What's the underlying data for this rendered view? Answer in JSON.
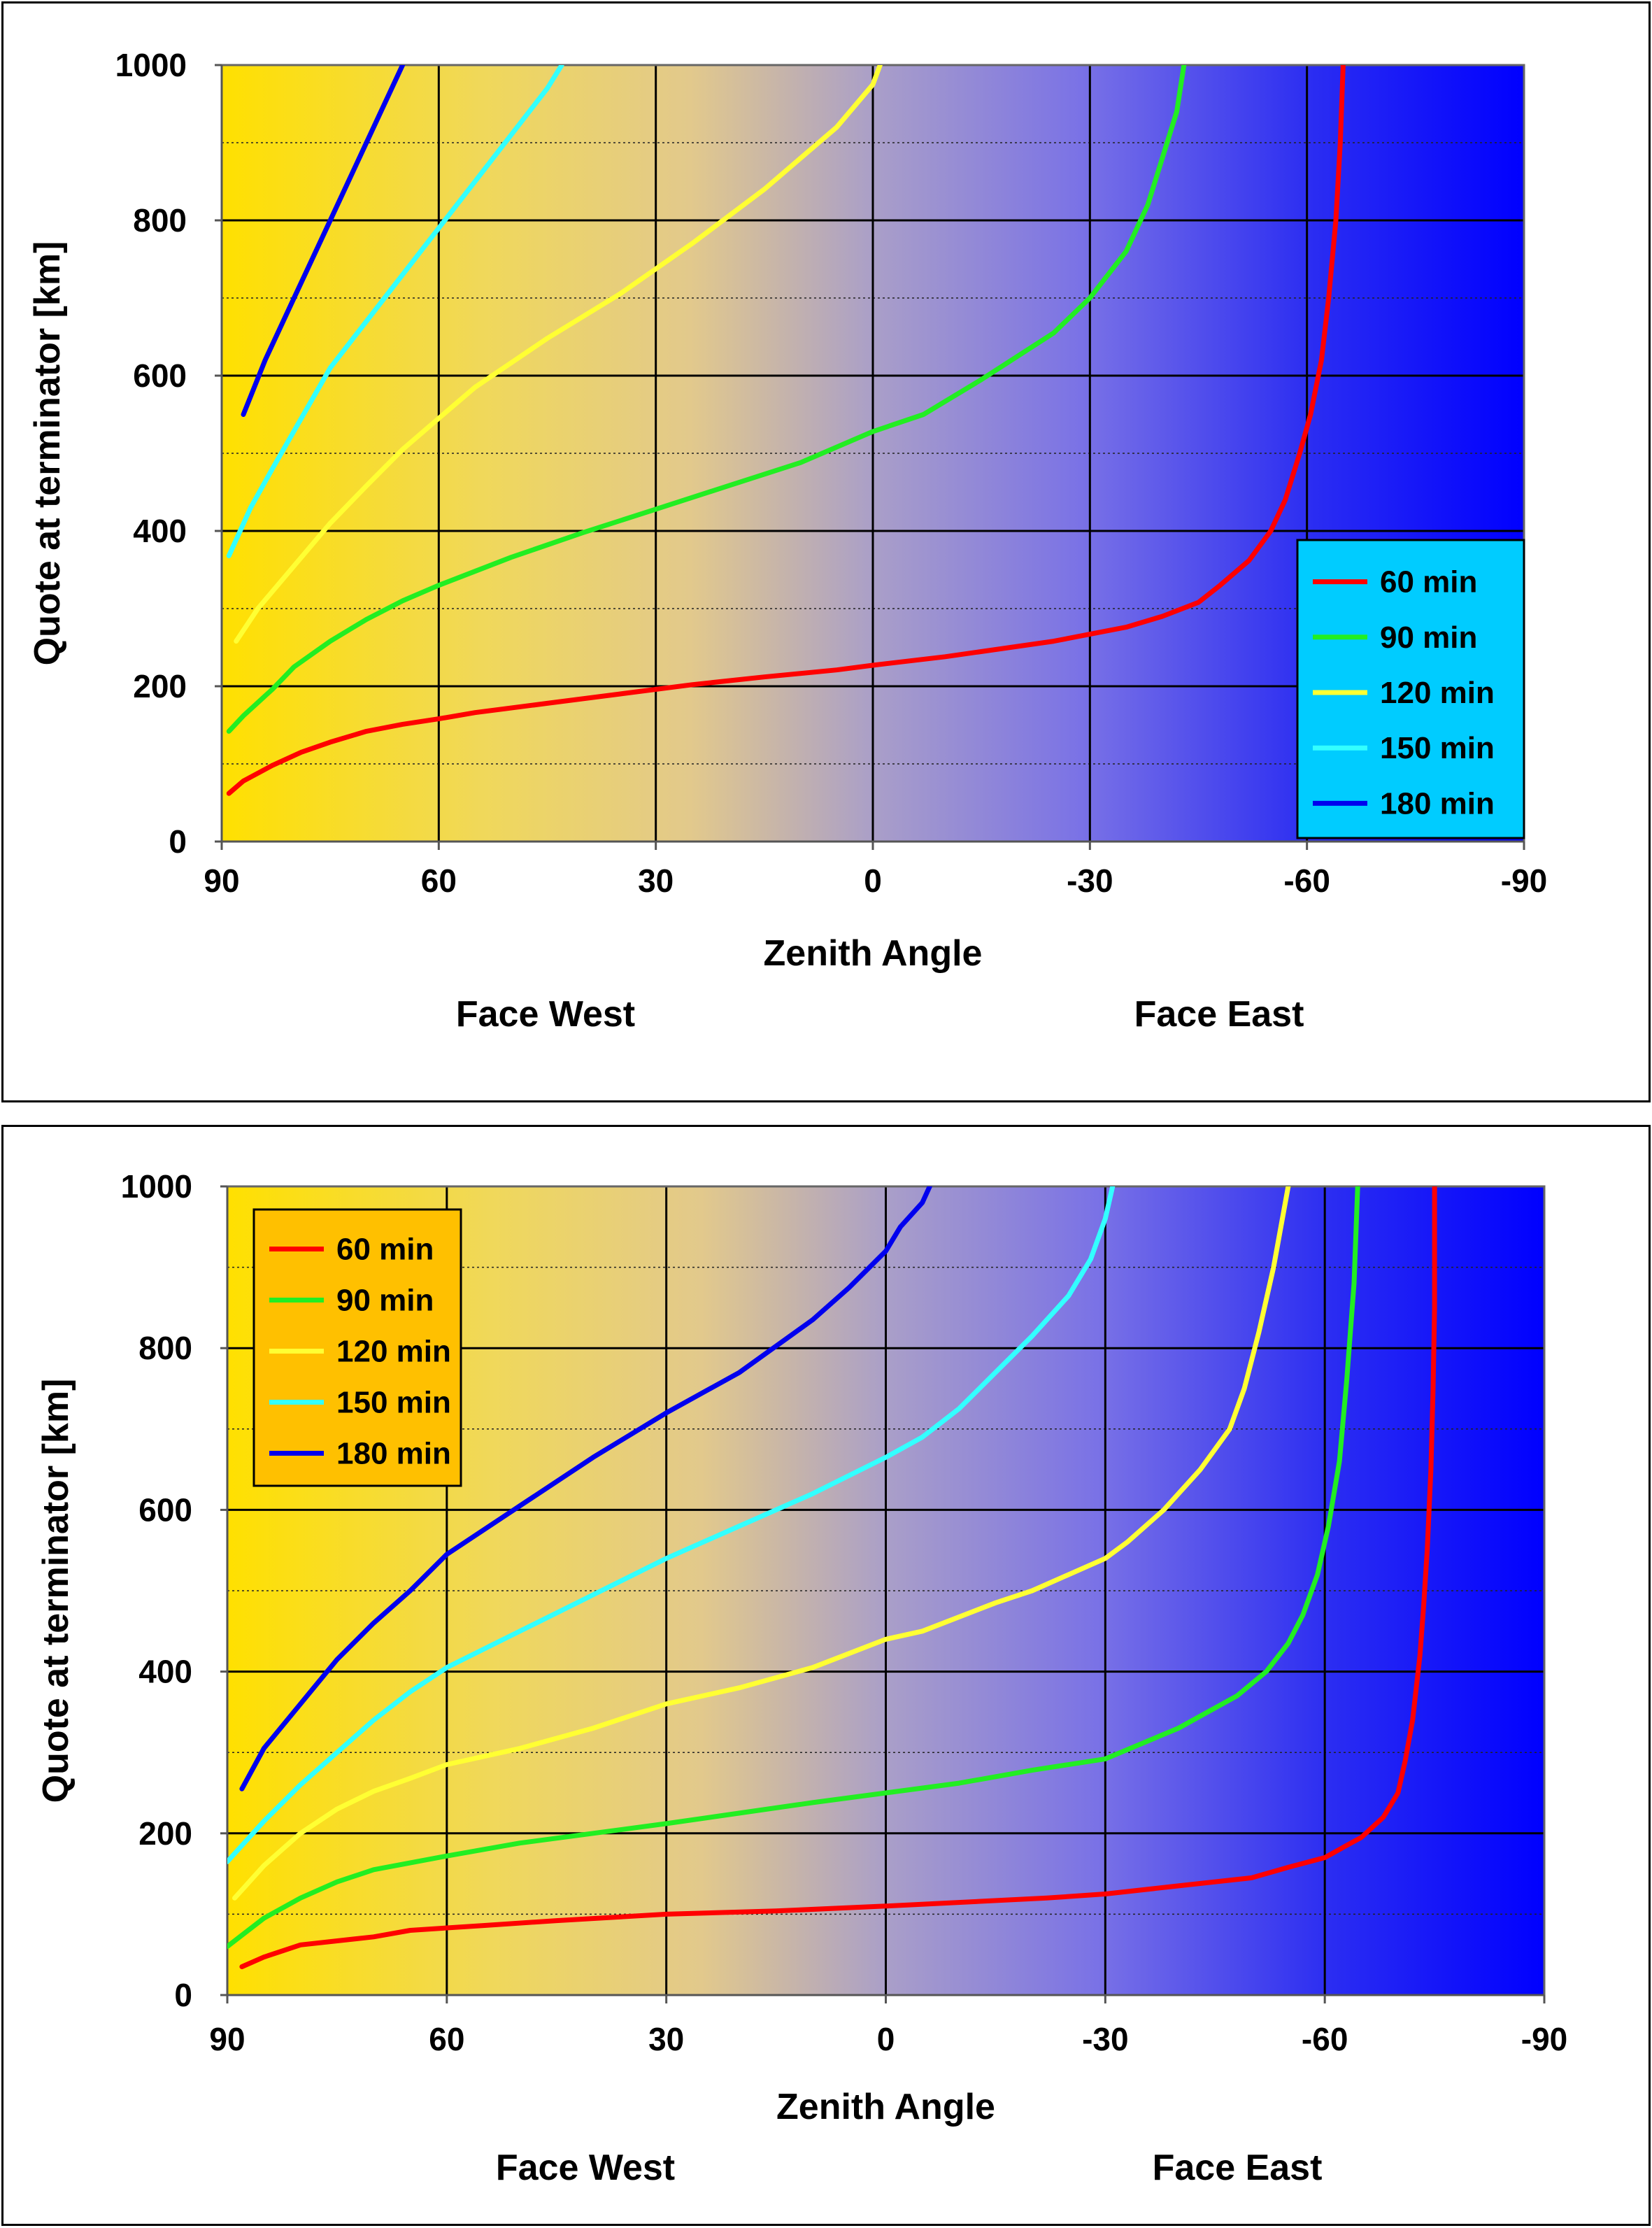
{
  "chart_data": [
    {
      "type": "line",
      "title": "",
      "xlabel": "Zenith Angle",
      "ylabel": "Quote at terminator [km]",
      "sublabels": [
        "Face West",
        "Face East"
      ],
      "xlim": [
        90,
        -90
      ],
      "ylim": [
        0,
        1000
      ],
      "x_ticks": [
        "90",
        "60",
        "30",
        "0",
        "-30",
        "-60",
        "-90"
      ],
      "y_ticks": [
        "0",
        "200",
        "400",
        "600",
        "800",
        "1000"
      ],
      "grid": true,
      "background": "gradient yellow (west) to blue (east)",
      "legend_position": "bottom-right",
      "legend_bg": "#00ccff",
      "series": [
        {
          "name": "60 min",
          "color": "#ff0000",
          "points": [
            [
              89,
              62
            ],
            [
              87,
              78
            ],
            [
              83,
              98
            ],
            [
              79,
              115
            ],
            [
              75,
              128
            ],
            [
              70,
              142
            ],
            [
              65,
              151
            ],
            [
              60,
              158
            ],
            [
              55,
              166
            ],
            [
              45,
              178
            ],
            [
              35,
              190
            ],
            [
              25,
              202
            ],
            [
              15,
              212
            ],
            [
              5,
              221
            ],
            [
              0,
              227
            ],
            [
              -10,
              238
            ],
            [
              -25,
              258
            ],
            [
              -35,
              276
            ],
            [
              -40,
              290
            ],
            [
              -45,
              308
            ],
            [
              -48,
              330
            ],
            [
              -52,
              362
            ],
            [
              -55,
              400
            ],
            [
              -57,
              440
            ],
            [
              -59,
              500
            ],
            [
              -60.5,
              550
            ],
            [
              -62,
              620
            ],
            [
              -63,
              700
            ],
            [
              -64,
              800
            ],
            [
              -64.6,
              900
            ],
            [
              -65,
              1000
            ]
          ]
        },
        {
          "name": "90 min",
          "color": "#22ee22",
          "points": [
            [
              89,
              142
            ],
            [
              87,
              162
            ],
            [
              83,
              196
            ],
            [
              80,
              225
            ],
            [
              75,
              258
            ],
            [
              70,
              286
            ],
            [
              65,
              310
            ],
            [
              60,
              330
            ],
            [
              55,
              348
            ],
            [
              50,
              366
            ],
            [
              40,
              398
            ],
            [
              30,
              428
            ],
            [
              20,
              458
            ],
            [
              10,
              488
            ],
            [
              0,
              528
            ],
            [
              -7,
              550
            ],
            [
              -15,
              595
            ],
            [
              -25,
              655
            ],
            [
              -30,
              700
            ],
            [
              -35,
              760
            ],
            [
              -38,
              820
            ],
            [
              -40,
              880
            ],
            [
              -42,
              940
            ],
            [
              -43,
              1000
            ]
          ]
        },
        {
          "name": "120 min",
          "color": "#ffff33",
          "points": [
            [
              88,
              258
            ],
            [
              85,
              300
            ],
            [
              80,
              355
            ],
            [
              75,
              410
            ],
            [
              70,
              458
            ],
            [
              65,
              505
            ],
            [
              60,
              545
            ],
            [
              55,
              585
            ],
            [
              45,
              648
            ],
            [
              35,
              705
            ],
            [
              25,
              770
            ],
            [
              15,
              840
            ],
            [
              5,
              920
            ],
            [
              0,
              975
            ],
            [
              -1,
              1000
            ]
          ]
        },
        {
          "name": "150 min",
          "color": "#33ffff",
          "points": [
            [
              89,
              368
            ],
            [
              86,
              430
            ],
            [
              83,
              480
            ],
            [
              79,
              545
            ],
            [
              75,
              610
            ],
            [
              70,
              670
            ],
            [
              65,
              730
            ],
            [
              60,
              790
            ],
            [
              55,
              850
            ],
            [
              50,
              910
            ],
            [
              45,
              970
            ],
            [
              43,
              1000
            ]
          ]
        },
        {
          "name": "180 min",
          "color": "#0000ee",
          "points": [
            [
              87,
              550
            ],
            [
              84,
              620
            ],
            [
              80,
              700
            ],
            [
              75,
              800
            ],
            [
              70,
              900
            ],
            [
              65,
              1000
            ]
          ]
        }
      ]
    },
    {
      "type": "line",
      "title": "",
      "xlabel": "Zenith Angle",
      "ylabel": "Quote at terminator [km]",
      "sublabels": [
        "Face West",
        "Face East"
      ],
      "xlim": [
        90,
        -90
      ],
      "ylim": [
        0,
        1000
      ],
      "x_ticks": [
        "90",
        "60",
        "30",
        "0",
        "-30",
        "-60",
        "-90"
      ],
      "y_ticks": [
        "0",
        "200",
        "400",
        "600",
        "800",
        "1000"
      ],
      "grid": true,
      "background": "gradient yellow (west) to blue (east)",
      "legend_position": "top-left",
      "legend_bg": "#ffc000",
      "series": [
        {
          "name": "60 min",
          "color": "#ff0000",
          "points": [
            [
              88,
              35
            ],
            [
              85,
              47
            ],
            [
              80,
              62
            ],
            [
              70,
              72
            ],
            [
              65,
              80
            ],
            [
              55,
              86
            ],
            [
              45,
              92
            ],
            [
              30,
              100
            ],
            [
              15,
              104
            ],
            [
              0,
              110
            ],
            [
              -22,
              120
            ],
            [
              -30,
              125
            ],
            [
              -40,
              135
            ],
            [
              -50,
              145
            ],
            [
              -55,
              158
            ],
            [
              -60,
              170
            ],
            [
              -63,
              185
            ],
            [
              -65,
              195
            ],
            [
              -68,
              220
            ],
            [
              -70,
              250
            ],
            [
              -71,
              290
            ],
            [
              -72,
              340
            ],
            [
              -73,
              420
            ],
            [
              -73.5,
              480
            ],
            [
              -74,
              550
            ],
            [
              -74.5,
              650
            ],
            [
              -74.8,
              750
            ],
            [
              -75,
              850
            ],
            [
              -75,
              1000
            ]
          ]
        },
        {
          "name": "90 min",
          "color": "#22ee22",
          "points": [
            [
              90,
              60
            ],
            [
              85,
              95
            ],
            [
              80,
              120
            ],
            [
              75,
              140
            ],
            [
              70,
              155
            ],
            [
              60,
              172
            ],
            [
              50,
              188
            ],
            [
              40,
              200
            ],
            [
              30,
              212
            ],
            [
              20,
              225
            ],
            [
              10,
              238
            ],
            [
              0,
              250
            ],
            [
              -10,
              262
            ],
            [
              -20,
              278
            ],
            [
              -30,
              292
            ],
            [
              -40,
              330
            ],
            [
              -48,
              370
            ],
            [
              -52,
              400
            ],
            [
              -55,
              435
            ],
            [
              -57,
              470
            ],
            [
              -59,
              520
            ],
            [
              -60.5,
              580
            ],
            [
              -62,
              660
            ],
            [
              -63,
              760
            ],
            [
              -64,
              880
            ],
            [
              -64.5,
              1000
            ]
          ]
        },
        {
          "name": "120 min",
          "color": "#ffff33",
          "points": [
            [
              89,
              120
            ],
            [
              85,
              160
            ],
            [
              80,
              200
            ],
            [
              75,
              230
            ],
            [
              70,
              252
            ],
            [
              65,
              268
            ],
            [
              60,
              285
            ],
            [
              50,
              305
            ],
            [
              40,
              330
            ],
            [
              30,
              360
            ],
            [
              20,
              380
            ],
            [
              10,
              405
            ],
            [
              0,
              440
            ],
            [
              -5,
              450
            ],
            [
              -15,
              485
            ],
            [
              -20,
              500
            ],
            [
              -30,
              540
            ],
            [
              -33,
              560
            ],
            [
              -38,
              600
            ],
            [
              -43,
              650
            ],
            [
              -47,
              700
            ],
            [
              -49,
              750
            ],
            [
              -51,
              820
            ],
            [
              -53,
              900
            ],
            [
              -54,
              950
            ],
            [
              -55,
              1000
            ]
          ]
        },
        {
          "name": "150 min",
          "color": "#33ffff",
          "points": [
            [
              90,
              165
            ],
            [
              85,
              215
            ],
            [
              80,
              260
            ],
            [
              75,
              300
            ],
            [
              70,
              340
            ],
            [
              65,
              375
            ],
            [
              60,
              405
            ],
            [
              50,
              450
            ],
            [
              40,
              495
            ],
            [
              30,
              540
            ],
            [
              20,
              580
            ],
            [
              10,
              620
            ],
            [
              0,
              665
            ],
            [
              -5,
              690
            ],
            [
              -10,
              725
            ],
            [
              -15,
              770
            ],
            [
              -20,
              815
            ],
            [
              -25,
              865
            ],
            [
              -28,
              910
            ],
            [
              -30,
              960
            ],
            [
              -31,
              1000
            ]
          ]
        },
        {
          "name": "180 min",
          "color": "#0000ee",
          "points": [
            [
              88,
              255
            ],
            [
              85,
              305
            ],
            [
              80,
              360
            ],
            [
              75,
              415
            ],
            [
              70,
              460
            ],
            [
              65,
              500
            ],
            [
              60,
              545
            ],
            [
              50,
              605
            ],
            [
              40,
              665
            ],
            [
              30,
              720
            ],
            [
              20,
              770
            ],
            [
              10,
              835
            ],
            [
              5,
              875
            ],
            [
              0,
              920
            ],
            [
              -2,
              950
            ],
            [
              -5,
              980
            ],
            [
              -6,
              1000
            ]
          ]
        }
      ]
    }
  ]
}
